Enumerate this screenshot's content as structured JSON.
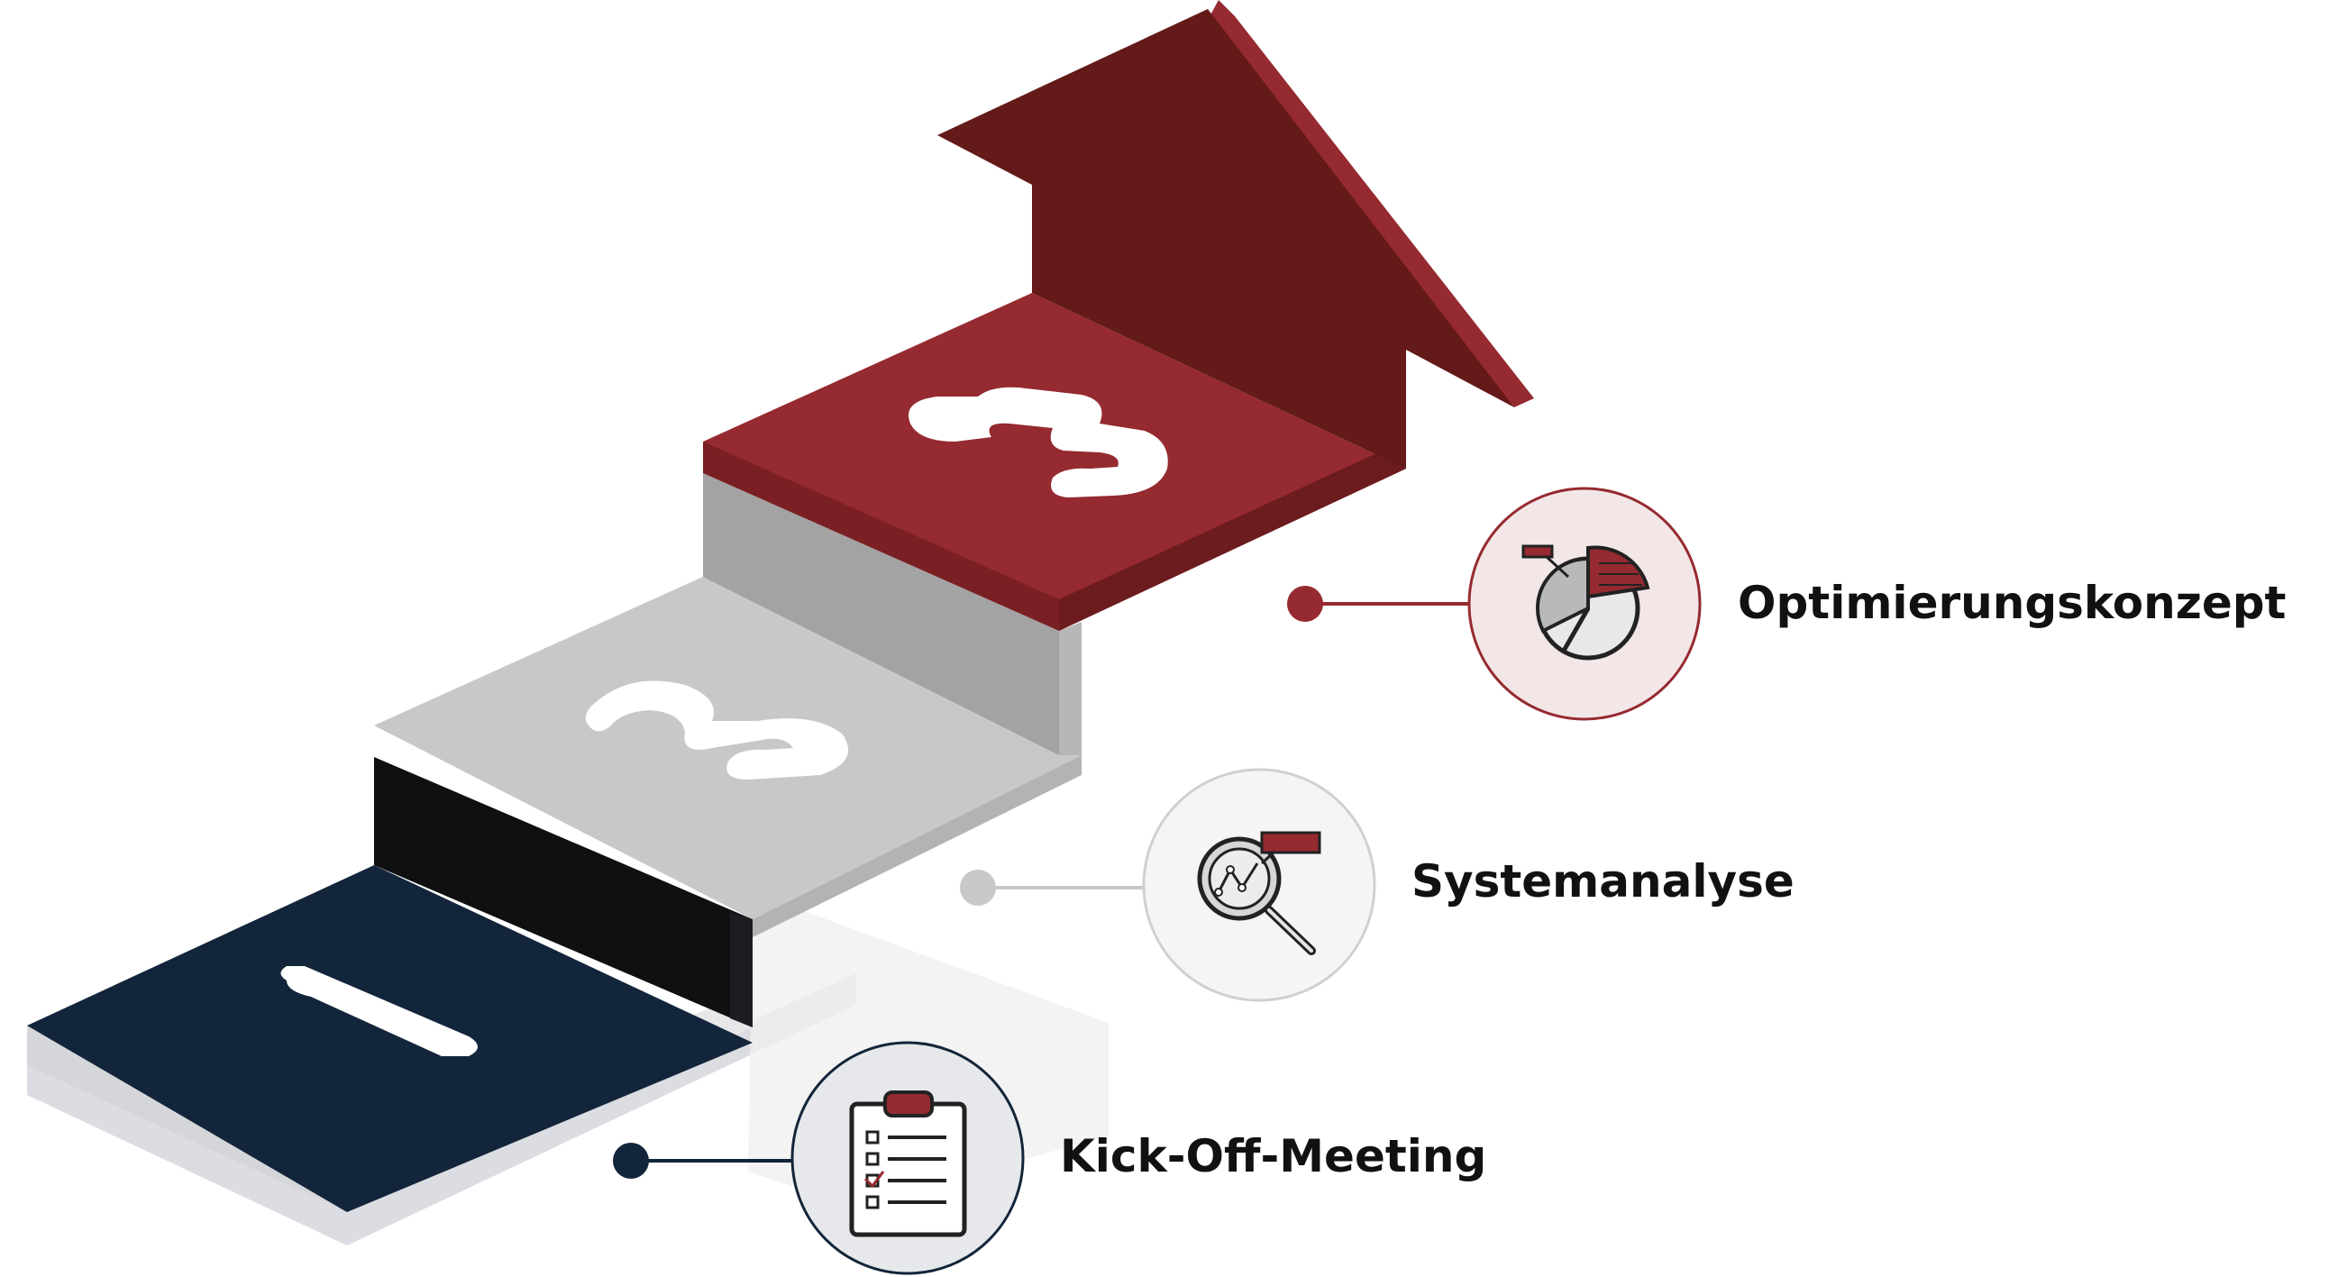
{
  "steps": [
    {
      "number": "1",
      "label": "Kick-Off-Meeting",
      "icon": "clipboard-checklist-icon",
      "color": "#13253a"
    },
    {
      "number": "2",
      "label": "Systemanalyse",
      "icon": "magnifier-chart-icon",
      "color": "#c8c8c8"
    },
    {
      "number": "3",
      "label": "Optimierungskonzept",
      "icon": "pie-chart-icon",
      "color": "#952a30"
    }
  ],
  "colors": {
    "navy": "#13253a",
    "grey": "#c8c8c8",
    "red": "#952a30",
    "dark_red": "#641a19",
    "black": "#0f1012"
  }
}
